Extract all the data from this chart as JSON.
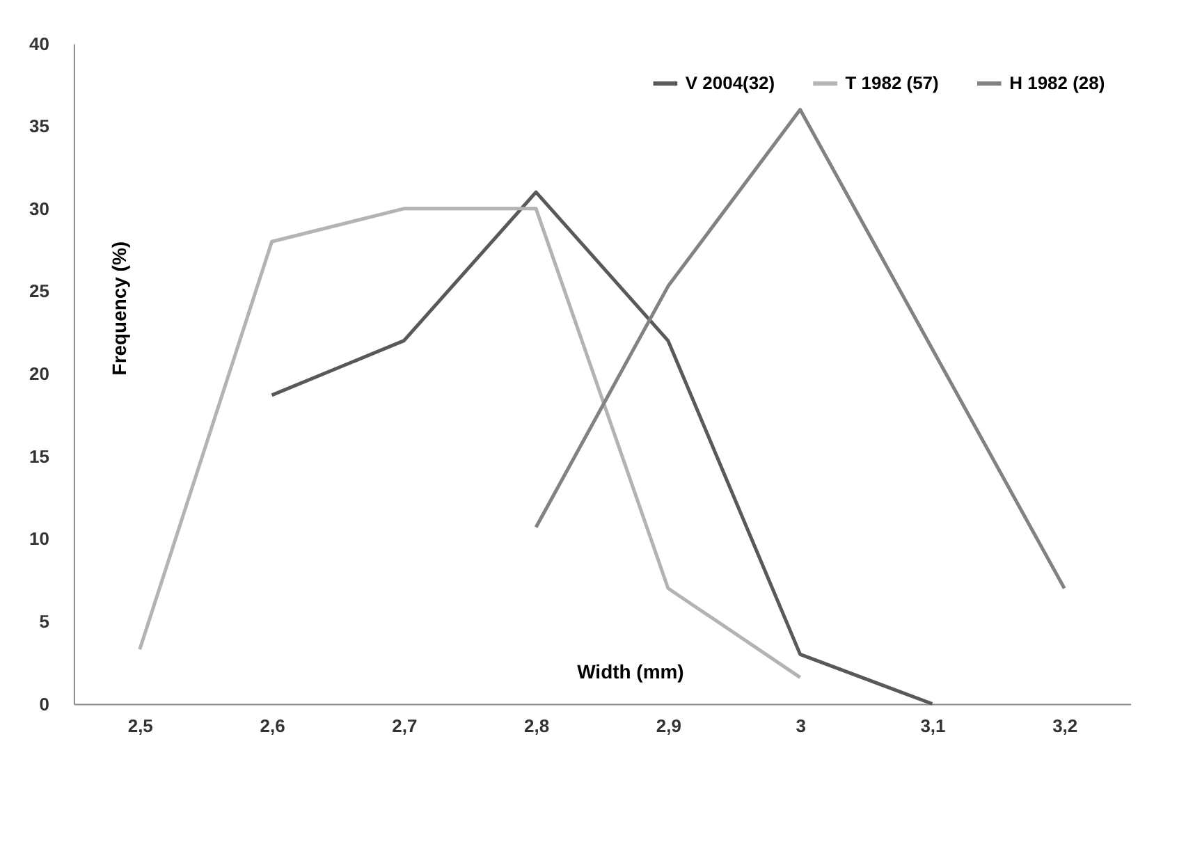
{
  "chart_data": {
    "type": "line",
    "xlabel": "Width (mm)",
    "ylabel": "Frequency (%)",
    "categories": [
      "2,5",
      "2,6",
      "2,7",
      "2,8",
      "2,9",
      "3",
      "3,1",
      "3,2"
    ],
    "series": [
      {
        "name": "V 2004(32)",
        "color": "#595959",
        "values": [
          null,
          18.7,
          22,
          31,
          22,
          3,
          0,
          null
        ]
      },
      {
        "name": "T 1982 (57)",
        "color": "#b3b3b3",
        "values": [
          3.3,
          28,
          30,
          30,
          7,
          1.6,
          null,
          null
        ]
      },
      {
        "name": "H 1982 (28)",
        "color": "#828282",
        "values": [
          null,
          null,
          null,
          10.7,
          25.3,
          36,
          21.5,
          7
        ]
      }
    ],
    "ylim": [
      0,
      40
    ],
    "yticks": [
      0,
      5,
      10,
      15,
      20,
      25,
      30,
      35,
      40
    ],
    "grid": false,
    "legend": "top right",
    "marker": "none",
    "line_style": "solid"
  }
}
